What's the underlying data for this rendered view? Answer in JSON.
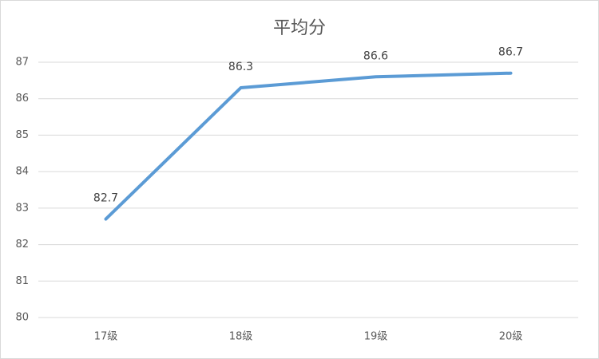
{
  "chart_data": {
    "type": "line",
    "title": "平均分",
    "categories": [
      "17级",
      "18级",
      "19级",
      "20级"
    ],
    "series": [
      {
        "name": "平均分",
        "color": "#5b9bd5",
        "values": [
          82.7,
          86.3,
          86.6,
          86.7
        ]
      }
    ],
    "ylim": [
      80,
      87
    ],
    "yticks": [
      80,
      81,
      82,
      83,
      84,
      85,
      86,
      87
    ],
    "grid": true,
    "data_labels": true
  }
}
